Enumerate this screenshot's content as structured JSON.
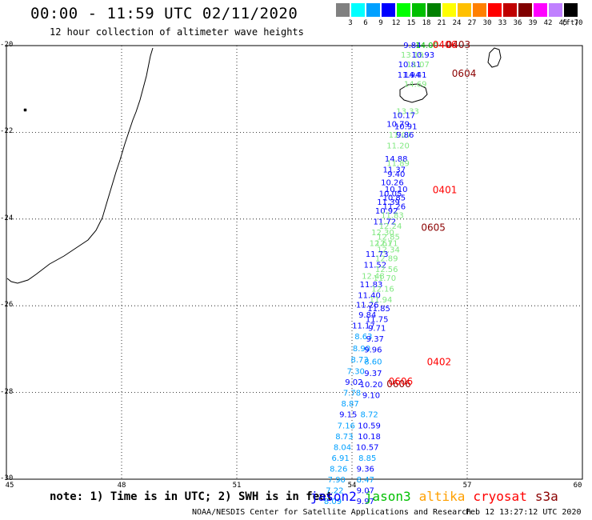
{
  "header": {
    "title": "00:00 - 11:59 UTC 02/11/2020",
    "subtitle": "12 hour collection of altimeter wave heights"
  },
  "legend": {
    "unit": "(ft)",
    "items": [
      {
        "label": "3",
        "color": "#808080"
      },
      {
        "label": "6",
        "color": "#00ffff"
      },
      {
        "label": "9",
        "color": "#00a0ff"
      },
      {
        "label": "12",
        "color": "#0000ff"
      },
      {
        "label": "15",
        "color": "#00ff00"
      },
      {
        "label": "18",
        "color": "#00c000"
      },
      {
        "label": "21",
        "color": "#008000"
      },
      {
        "label": "24",
        "color": "#ffff00"
      },
      {
        "label": "27",
        "color": "#ffc000"
      },
      {
        "label": "30",
        "color": "#ff8000"
      },
      {
        "label": "33",
        "color": "#ff0000"
      },
      {
        "label": "36",
        "color": "#c00000"
      },
      {
        "label": "39",
        "color": "#800000"
      },
      {
        "label": "42",
        "color": "#ff00ff"
      },
      {
        "label": "45",
        "color": "#c080ff"
      },
      {
        "label": "70",
        "color": "#000000"
      }
    ]
  },
  "axes": {
    "lat_labels": [
      "-20",
      "-22",
      "-24",
      "-26",
      "-28",
      "-30"
    ],
    "lon_labels": [
      "45",
      "48",
      "51",
      "54",
      "57",
      "60"
    ]
  },
  "colors": {
    "jason2": "#0000ff",
    "jason2_low": "#00a0ff",
    "jason3": "#00c000",
    "jason3_light": "#80e880",
    "altika": "#ffa000",
    "cryosat": "#ff0000",
    "s3a": "#8b0000",
    "coast": "#000000"
  },
  "passes": [
    {
      "label": "0403",
      "color": "#8b0000",
      "lon": 56.45,
      "lat": -19.98
    },
    {
      "label": "0406",
      "color": "#ff0000",
      "lon": 56.1,
      "lat": -19.98
    },
    {
      "label": "0604",
      "color": "#8b0000",
      "lon": 56.6,
      "lat": -20.65
    },
    {
      "label": "0401",
      "color": "#ff0000",
      "lon": 56.1,
      "lat": -23.33
    },
    {
      "label": "0605",
      "color": "#8b0000",
      "lon": 55.8,
      "lat": -24.2
    },
    {
      "label": "0402",
      "color": "#ff0000",
      "lon": 55.95,
      "lat": -27.3
    },
    {
      "label": "0606",
      "color": "#8b0000",
      "lon": 54.9,
      "lat": -27.8
    },
    {
      "label": "0606",
      "color": "#ff0000",
      "lon": 54.95,
      "lat": -27.75
    }
  ],
  "readings": [
    {
      "v": "9.84",
      "lon": 55.57,
      "lat": -19.98,
      "c": "#0000ff"
    },
    {
      "v": "14.00",
      "lon": 55.95,
      "lat": -19.98,
      "c": "#00c000"
    },
    {
      "v": "13.19",
      "lon": 55.57,
      "lat": -20.2,
      "c": "#80e880"
    },
    {
      "v": "10.93",
      "lon": 55.85,
      "lat": -20.2,
      "c": "#0000ff"
    },
    {
      "v": "10.81",
      "lon": 55.5,
      "lat": -20.42,
      "c": "#0000ff"
    },
    {
      "v": "11.07",
      "lon": 55.72,
      "lat": -20.42,
      "c": "#80e880"
    },
    {
      "v": "11.94",
      "lon": 55.48,
      "lat": -20.66,
      "c": "#0000ff"
    },
    {
      "v": "14.41",
      "lon": 55.65,
      "lat": -20.66,
      "c": "#0000ff"
    },
    {
      "v": "14.69",
      "lon": 55.65,
      "lat": -20.88,
      "c": "#80e880"
    },
    {
      "v": "13.33",
      "lon": 55.45,
      "lat": -21.5,
      "c": "#80e880"
    },
    {
      "v": "10.17",
      "lon": 55.35,
      "lat": -21.6,
      "c": "#0000ff"
    },
    {
      "v": "10.79",
      "lon": 55.2,
      "lat": -21.8,
      "c": "#0000ff"
    },
    {
      "v": "10.91",
      "lon": 55.4,
      "lat": -21.85,
      "c": "#0000ff"
    },
    {
      "v": "11.07",
      "lon": 55.25,
      "lat": -22.05,
      "c": "#80e880"
    },
    {
      "v": "9.86",
      "lon": 55.38,
      "lat": -22.05,
      "c": "#0000ff"
    },
    {
      "v": "11.20",
      "lon": 55.2,
      "lat": -22.3,
      "c": "#80e880"
    },
    {
      "v": "14.88",
      "lon": 55.15,
      "lat": -22.6,
      "c": "#0000ff"
    },
    {
      "v": "11.89",
      "lon": 55.2,
      "lat": -22.7,
      "c": "#80e880"
    },
    {
      "v": "11.37",
      "lon": 55.1,
      "lat": -22.85,
      "c": "#0000ff"
    },
    {
      "v": "9.40",
      "lon": 55.15,
      "lat": -22.95,
      "c": "#0000ff"
    },
    {
      "v": "10.26",
      "lon": 55.05,
      "lat": -23.15,
      "c": "#0000ff"
    },
    {
      "v": "10.10",
      "lon": 55.15,
      "lat": -23.3,
      "c": "#0000ff"
    },
    {
      "v": "10.05",
      "lon": 55.0,
      "lat": -23.4,
      "c": "#0000ff"
    },
    {
      "v": "10.85",
      "lon": 55.1,
      "lat": -23.5,
      "c": "#0000ff"
    },
    {
      "v": "11.39",
      "lon": 54.95,
      "lat": -23.6,
      "c": "#0000ff"
    },
    {
      "v": "11.26",
      "lon": 55.1,
      "lat": -23.7,
      "c": "#0000ff"
    },
    {
      "v": "10.92",
      "lon": 54.9,
      "lat": -23.8,
      "c": "#0000ff"
    },
    {
      "v": "11.83",
      "lon": 55.05,
      "lat": -23.9,
      "c": "#80e880"
    },
    {
      "v": "11.72",
      "lon": 54.85,
      "lat": -24.05,
      "c": "#0000ff"
    },
    {
      "v": "12.24",
      "lon": 55.0,
      "lat": -24.15,
      "c": "#80e880"
    },
    {
      "v": "12.30",
      "lon": 54.8,
      "lat": -24.3,
      "c": "#80e880"
    },
    {
      "v": "12.85",
      "lon": 54.95,
      "lat": -24.4,
      "c": "#80e880"
    },
    {
      "v": "12.61",
      "lon": 54.75,
      "lat": -24.55,
      "c": "#80e880"
    },
    {
      "v": "12.71",
      "lon": 54.9,
      "lat": -24.55,
      "c": "#80e880"
    },
    {
      "v": "12.34",
      "lon": 54.95,
      "lat": -24.7,
      "c": "#80e880"
    },
    {
      "v": "11.73",
      "lon": 54.65,
      "lat": -24.8,
      "c": "#0000ff"
    },
    {
      "v": "12.89",
      "lon": 54.9,
      "lat": -24.9,
      "c": "#80e880"
    },
    {
      "v": "11.52",
      "lon": 54.6,
      "lat": -25.05,
      "c": "#0000ff"
    },
    {
      "v": "12.56",
      "lon": 54.9,
      "lat": -25.15,
      "c": "#80e880"
    },
    {
      "v": "12.48",
      "lon": 54.55,
      "lat": -25.3,
      "c": "#80e880"
    },
    {
      "v": "11.70",
      "lon": 54.85,
      "lat": -25.35,
      "c": "#80e880"
    },
    {
      "v": "11.83",
      "lon": 54.5,
      "lat": -25.5,
      "c": "#0000ff"
    },
    {
      "v": "12.16",
      "lon": 54.8,
      "lat": -25.6,
      "c": "#80e880"
    },
    {
      "v": "11.40",
      "lon": 54.45,
      "lat": -25.75,
      "c": "#0000ff"
    },
    {
      "v": "11.94",
      "lon": 54.75,
      "lat": -25.85,
      "c": "#80e880"
    },
    {
      "v": "11.26",
      "lon": 54.4,
      "lat": -25.97,
      "c": "#0000ff"
    },
    {
      "v": "11.85",
      "lon": 54.7,
      "lat": -26.05,
      "c": "#0000ff"
    },
    {
      "v": "9.84",
      "lon": 54.4,
      "lat": -26.2,
      "c": "#0000ff"
    },
    {
      "v": "11.75",
      "lon": 54.65,
      "lat": -26.3,
      "c": "#0000ff"
    },
    {
      "v": "11.17",
      "lon": 54.3,
      "lat": -26.45,
      "c": "#0000ff"
    },
    {
      "v": "9.71",
      "lon": 54.65,
      "lat": -26.5,
      "c": "#0000ff"
    },
    {
      "v": "8.63",
      "lon": 54.3,
      "lat": -26.7,
      "c": "#00a0ff"
    },
    {
      "v": "9.37",
      "lon": 54.6,
      "lat": -26.75,
      "c": "#0000ff"
    },
    {
      "v": "8.90",
      "lon": 54.25,
      "lat": -26.97,
      "c": "#00a0ff"
    },
    {
      "v": "9.96",
      "lon": 54.55,
      "lat": -27.0,
      "c": "#0000ff"
    },
    {
      "v": "8.73",
      "lon": 54.2,
      "lat": -27.23,
      "c": "#00a0ff"
    },
    {
      "v": "8.60",
      "lon": 54.55,
      "lat": -27.28,
      "c": "#00a0ff"
    },
    {
      "v": "7.30",
      "lon": 54.1,
      "lat": -27.5,
      "c": "#00a0ff"
    },
    {
      "v": "9.37",
      "lon": 54.55,
      "lat": -27.55,
      "c": "#0000ff"
    },
    {
      "v": "9.02",
      "lon": 54.05,
      "lat": -27.75,
      "c": "#0000ff"
    },
    {
      "v": "10.20",
      "lon": 54.5,
      "lat": -27.8,
      "c": "#0000ff"
    },
    {
      "v": "7.78",
      "lon": 54.0,
      "lat": -28.0,
      "c": "#00a0ff"
    },
    {
      "v": "9.10",
      "lon": 54.5,
      "lat": -28.05,
      "c": "#0000ff"
    },
    {
      "v": "8.87",
      "lon": 53.95,
      "lat": -28.25,
      "c": "#00a0ff"
    },
    {
      "v": "9.15",
      "lon": 53.9,
      "lat": -28.5,
      "c": "#0000ff"
    },
    {
      "v": "8.72",
      "lon": 54.45,
      "lat": -28.5,
      "c": "#00a0ff"
    },
    {
      "v": "7.16",
      "lon": 53.85,
      "lat": -28.75,
      "c": "#00a0ff"
    },
    {
      "v": "10.59",
      "lon": 54.45,
      "lat": -28.75,
      "c": "#0000ff"
    },
    {
      "v": "8.73",
      "lon": 53.8,
      "lat": -29.0,
      "c": "#00a0ff"
    },
    {
      "v": "10.18",
      "lon": 54.45,
      "lat": -29.0,
      "c": "#0000ff"
    },
    {
      "v": "8.04",
      "lon": 53.75,
      "lat": -29.25,
      "c": "#00a0ff"
    },
    {
      "v": "10.57",
      "lon": 54.4,
      "lat": -29.25,
      "c": "#0000ff"
    },
    {
      "v": "6.91",
      "lon": 53.7,
      "lat": -29.5,
      "c": "#00a0ff"
    },
    {
      "v": "8.85",
      "lon": 54.4,
      "lat": -29.5,
      "c": "#00a0ff"
    },
    {
      "v": "8.26",
      "lon": 53.65,
      "lat": -29.75,
      "c": "#00a0ff"
    },
    {
      "v": "9.36",
      "lon": 54.35,
      "lat": -29.75,
      "c": "#0000ff"
    },
    {
      "v": "7.90",
      "lon": 53.6,
      "lat": -30.0,
      "c": "#00a0ff"
    },
    {
      "v": "8.47",
      "lon": 54.35,
      "lat": -30.0,
      "c": "#00a0ff"
    },
    {
      "v": "7.22",
      "lon": 53.55,
      "lat": -30.25,
      "c": "#00a0ff"
    },
    {
      "v": "9.07",
      "lon": 54.35,
      "lat": -30.25,
      "c": "#0000ff"
    },
    {
      "v": "8.09",
      "lon": 53.5,
      "lat": -30.5,
      "c": "#00a0ff"
    },
    {
      "v": "9.97",
      "lon": 54.35,
      "lat": -30.5,
      "c": "#0000ff"
    }
  ],
  "footer": {
    "note": "note: 1) Time is in UTC; 2) SWH is in feet",
    "satellites": [
      {
        "label": "jason2",
        "color": "#0000ff"
      },
      {
        "label": "jason3",
        "color": "#00c000"
      },
      {
        "label": "altika",
        "color": "#ffa000"
      },
      {
        "label": "cryosat",
        "color": "#ff0000"
      },
      {
        "label": "s3a",
        "color": "#8b0000"
      }
    ],
    "credit": "NOAA/NESDIS Center for Satellite Applications and Research",
    "timestamp": "Feb 12 13:27:12 UTC 2020"
  }
}
